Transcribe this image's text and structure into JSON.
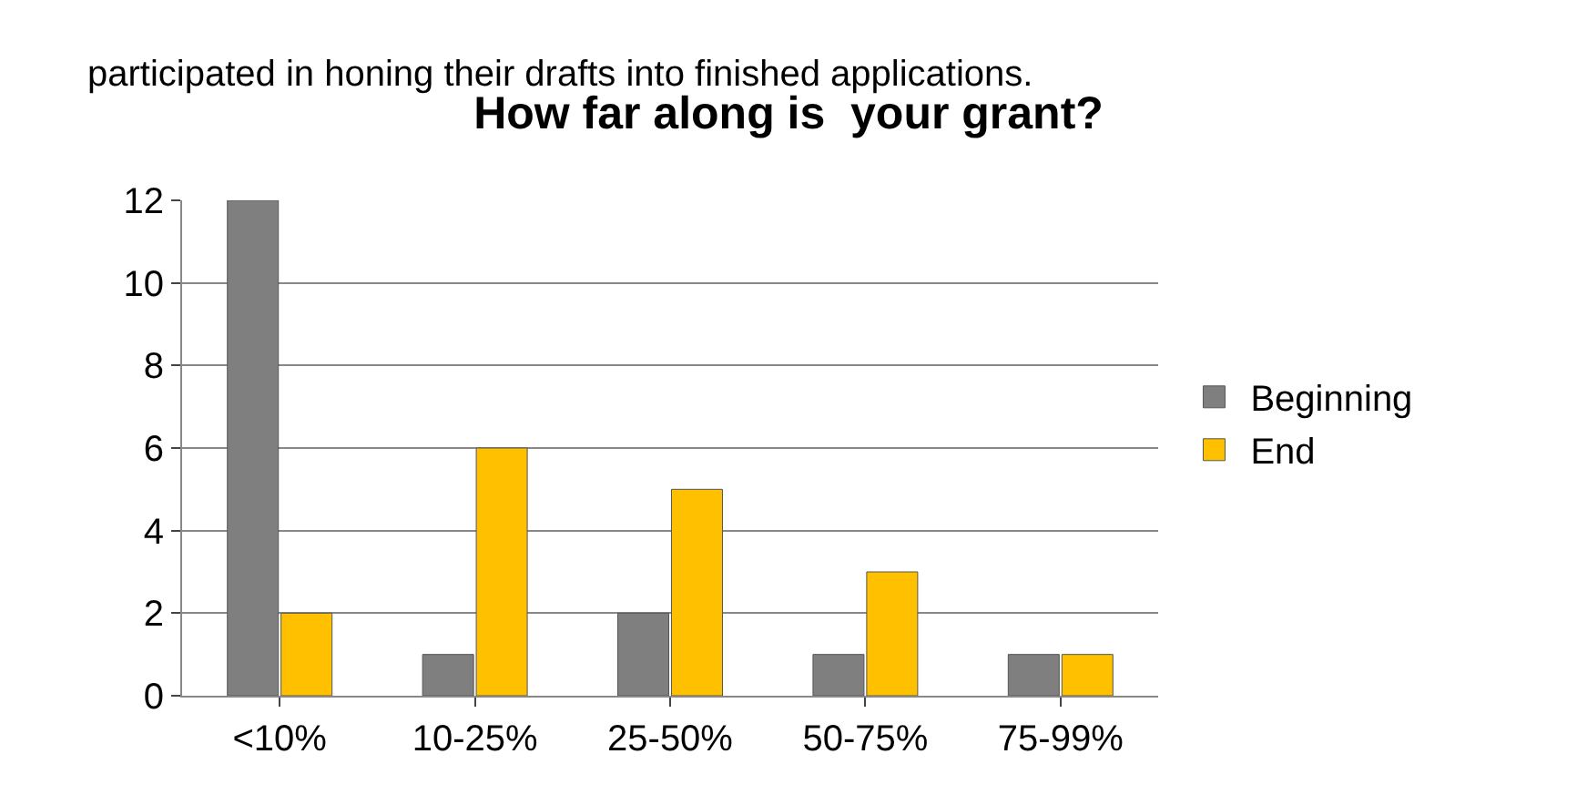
{
  "chart_data": {
    "type": "bar",
    "title": "How far along is  your grant?",
    "categories": [
      "<10%",
      "10-25%",
      "25-50%",
      "50-75%",
      "75-99%"
    ],
    "series": [
      {
        "name": "Beginning",
        "color": "#7f7f7f",
        "values": [
          12,
          1,
          2,
          1,
          1
        ]
      },
      {
        "name": "End",
        "color": "#ffc000",
        "values": [
          2,
          6,
          5,
          3,
          1
        ]
      }
    ],
    "ylim": [
      0,
      12
    ],
    "yticks": [
      0,
      2,
      4,
      6,
      8,
      10,
      12
    ],
    "grid": "y",
    "legend": "right",
    "annotations": [
      "participated in honing their drafts into finished applications."
    ]
  }
}
